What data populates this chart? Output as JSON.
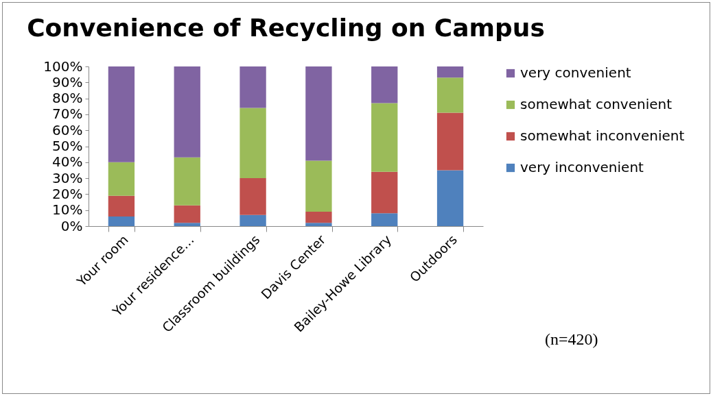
{
  "chart_data": {
    "type": "bar",
    "title": "Convenience of Recycling on Campus",
    "categories": [
      "Your room",
      "Your residence…",
      "Classroom buildings",
      "Davis Center",
      "Bailey-Howe Library",
      "Outdoors"
    ],
    "stacked": true,
    "series": [
      {
        "name": "very inconvenient",
        "color": "#4f81bd",
        "values": [
          6,
          2,
          7,
          2,
          8,
          35
        ]
      },
      {
        "name": "somewhat inconvenient",
        "color": "#c0504d",
        "values": [
          13,
          11,
          23,
          7,
          26,
          36
        ]
      },
      {
        "name": "somewhat convenient",
        "color": "#9bbb59",
        "values": [
          21,
          30,
          44,
          32,
          43,
          22
        ]
      },
      {
        "name": "very convenient",
        "color": "#8064a2",
        "values": [
          60,
          57,
          26,
          59,
          23,
          7
        ]
      }
    ],
    "ylim": [
      0,
      100
    ],
    "yticks": [
      {
        "value": 0,
        "label": "0%"
      },
      {
        "value": 10,
        "label": "10%"
      },
      {
        "value": 20,
        "label": "20%"
      },
      {
        "value": 30,
        "label": "30%"
      },
      {
        "value": 40,
        "label": "40%"
      },
      {
        "value": 50,
        "label": "50%"
      },
      {
        "value": 60,
        "label": "60%"
      },
      {
        "value": 70,
        "label": "70%"
      },
      {
        "value": 80,
        "label": "80%"
      },
      {
        "value": 90,
        "label": "90%"
      },
      {
        "value": 100,
        "label": "100%"
      }
    ],
    "grid": false,
    "legend": "right",
    "annotations": [
      "(n=420)"
    ]
  }
}
